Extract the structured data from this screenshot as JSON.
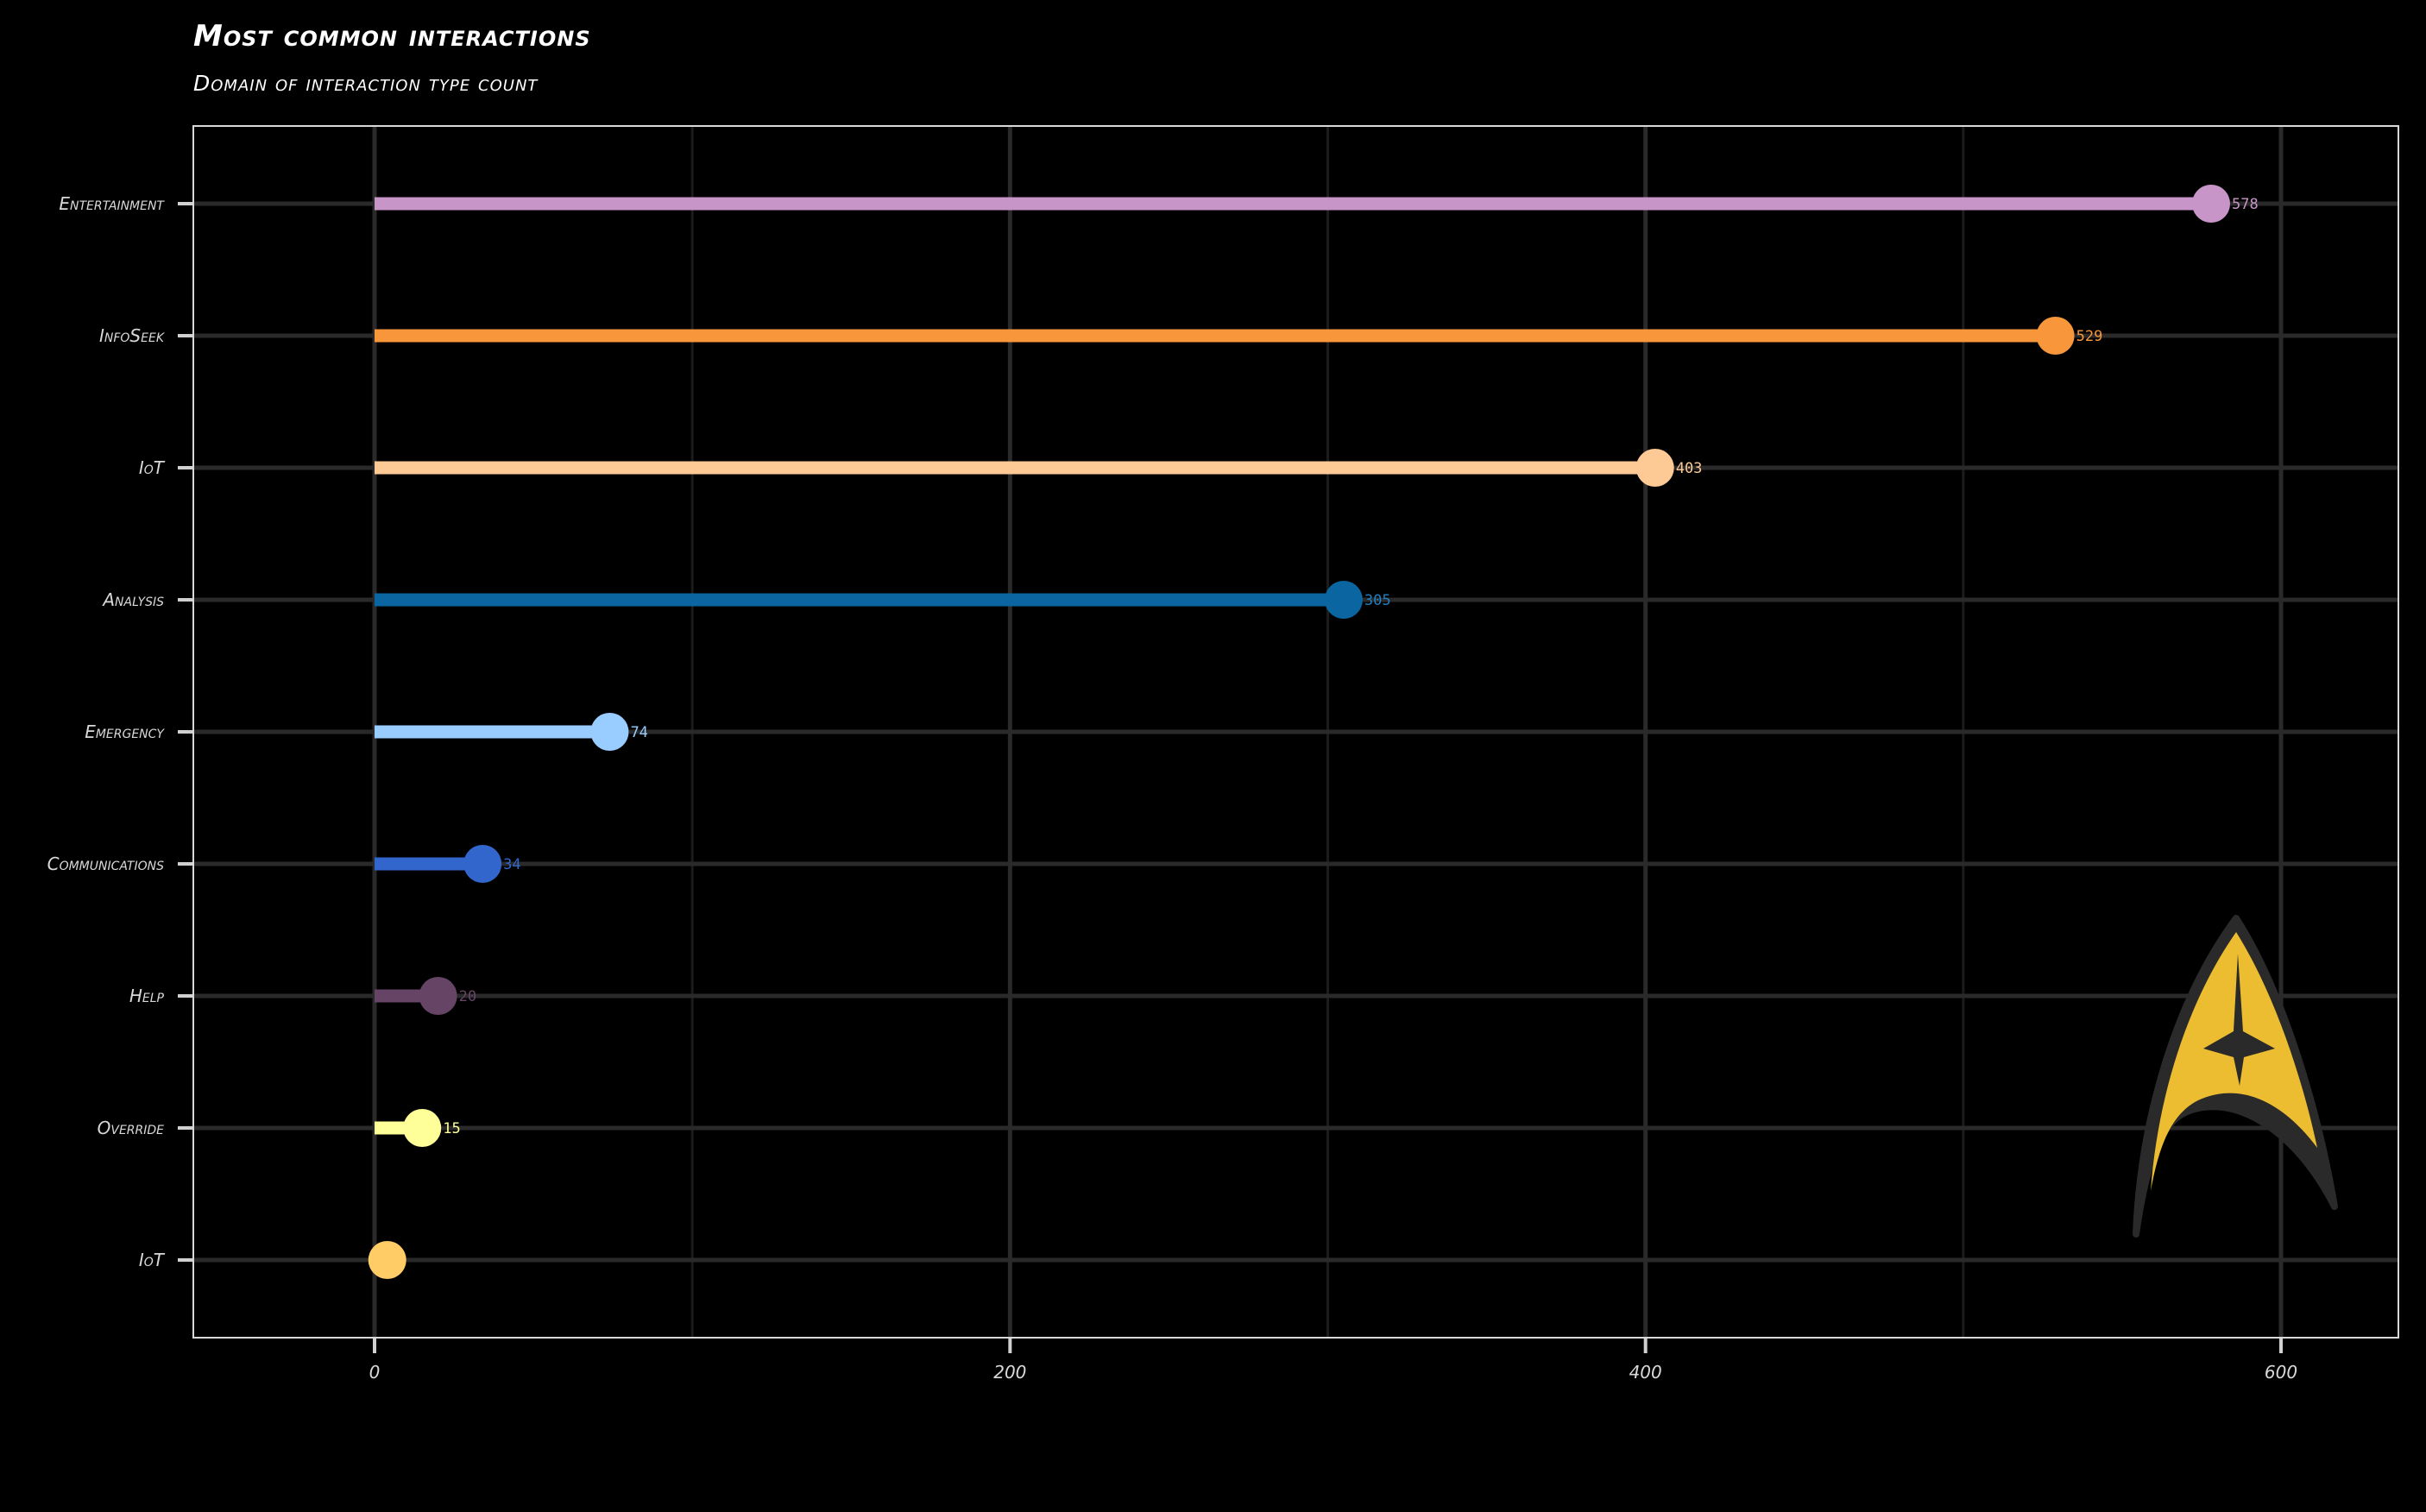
{
  "title": "Most common interactions",
  "subtitle": "Domain of interaction type count",
  "chart_data": {
    "type": "lollipop",
    "orientation": "horizontal",
    "title": "Most common interactions",
    "subtitle": "Domain of interaction type count",
    "xlim": [
      -57,
      637
    ],
    "xticks": [
      0,
      200,
      400,
      600
    ],
    "xtick_labels": [
      "0",
      "200",
      "400",
      "600"
    ],
    "grid": true,
    "categories": [
      "Entertainment",
      "InfoSeek",
      "IoT",
      "Analysis",
      "Emergency",
      "Communications",
      "Help",
      "Override",
      "IoT"
    ],
    "values": [
      578,
      529,
      403,
      305,
      74,
      34,
      20,
      15,
      4
    ],
    "value_labels": [
      "578",
      "529",
      "403",
      "305",
      "74",
      "34",
      "20",
      "15",
      ""
    ],
    "colors": [
      "#c895c8",
      "#f7963a",
      "#fdc994",
      "#0a65a0",
      "#99ccff",
      "#3366cc",
      "#664466",
      "#ffff9a",
      "#ffcc66"
    ],
    "value_label_colors": [
      "#c895c8",
      "#f7963a",
      "#fdc994",
      "#1f7fc0",
      "#99ccff",
      "#3366cc",
      "#664466",
      "#ffff9a",
      "#ffcc66"
    ]
  },
  "logo": {
    "name": "starfleet-delta-icon",
    "fill": "#ecbd30",
    "outline": "#2a2a2a"
  }
}
